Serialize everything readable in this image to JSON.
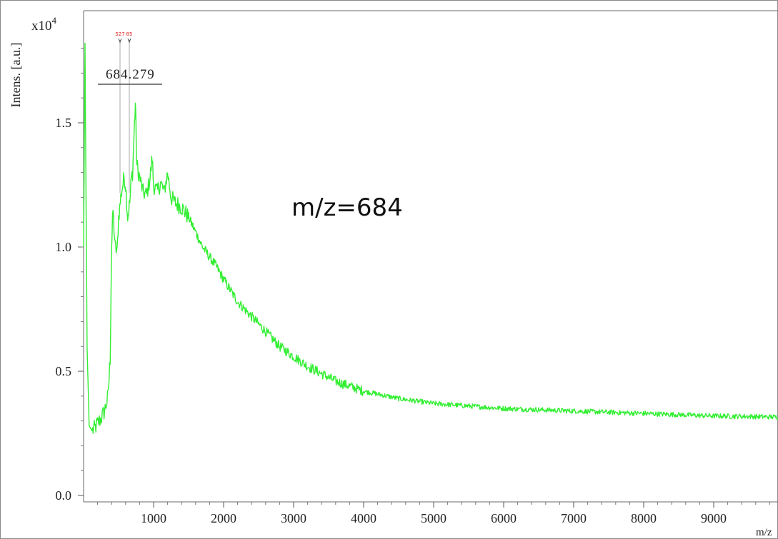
{
  "chart_data": {
    "type": "line",
    "title": "",
    "ylabel": "Intens. [a.u.]",
    "xlabel": "m/z",
    "y_multiplier": "x10",
    "y_multiplier_exp": "4",
    "annotation": "m/z=684",
    "peak_label": "684.279",
    "peak_flags": [
      "527",
      "85"
    ],
    "xlim": [
      0,
      10000
    ],
    "ylim": [
      0.0,
      1.9
    ],
    "x_ticks": [
      1000,
      2000,
      3000,
      4000,
      5000,
      6000,
      7000,
      8000,
      9000
    ],
    "x_tick_labels": [
      "1000",
      "2000",
      "3000",
      "4000",
      "5000",
      "6000",
      "7000",
      "8000",
      "9000"
    ],
    "y_ticks": [
      0.0,
      0.5,
      1.0,
      1.5
    ],
    "y_tick_labels": [
      "0.0",
      "0.5",
      "1.0",
      "1.5"
    ],
    "grid": false,
    "series": [
      {
        "color": "#33ee33",
        "x": [
          0,
          20,
          50,
          80,
          120,
          160,
          200,
          250,
          300,
          350,
          380,
          400,
          420,
          450,
          480,
          500,
          540,
          580,
          600,
          630,
          660,
          684,
          700,
          720,
          740,
          760,
          800,
          850,
          900,
          950,
          980,
          1000,
          1050,
          1100,
          1150,
          1200,
          1250,
          1300,
          1400,
          1500,
          1600,
          1700,
          1800,
          1900,
          2000,
          2200,
          2400,
          2600,
          2800,
          3000,
          3200,
          3400,
          3600,
          3800,
          4000,
          4500,
          5000,
          5500,
          6000,
          6500,
          7000,
          7500,
          8000,
          8500,
          9000,
          9500,
          10000
        ],
        "y": [
          1.0,
          1.82,
          0.6,
          0.28,
          0.26,
          0.27,
          0.29,
          0.31,
          0.34,
          0.4,
          0.55,
          1.0,
          1.15,
          1.0,
          0.98,
          1.12,
          1.22,
          1.28,
          1.25,
          1.12,
          1.18,
          1.28,
          1.3,
          1.45,
          1.58,
          1.33,
          1.28,
          1.22,
          1.21,
          1.28,
          1.36,
          1.25,
          1.22,
          1.26,
          1.22,
          1.3,
          1.2,
          1.18,
          1.16,
          1.12,
          1.06,
          1.0,
          0.96,
          0.92,
          0.87,
          0.78,
          0.72,
          0.66,
          0.6,
          0.56,
          0.52,
          0.49,
          0.46,
          0.44,
          0.42,
          0.39,
          0.37,
          0.36,
          0.35,
          0.345,
          0.34,
          0.335,
          0.33,
          0.325,
          0.32,
          0.318,
          0.315
        ]
      }
    ]
  }
}
